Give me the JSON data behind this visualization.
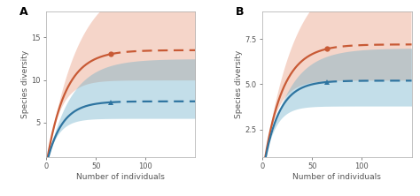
{
  "panel_A": {
    "label": "A",
    "xlim": [
      0,
      150
    ],
    "ylim": [
      1,
      18
    ],
    "yticks": [
      5,
      10,
      15
    ],
    "xlabel": "Number of individuals",
    "ylabel": "Species diversity",
    "red_obs_x": 65,
    "blue_obs_x": 65,
    "red_curve_params": {
      "a": 13.5,
      "b": 0.052
    },
    "blue_curve_params": {
      "a": 7.5,
      "b": 0.065
    },
    "red_ci_upper_params": {
      "a": 22.0,
      "b": 0.032
    },
    "red_ci_lower_params": {
      "a": 10.0,
      "b": 0.075
    },
    "blue_ci_upper_params": {
      "a": 12.5,
      "b": 0.042
    },
    "blue_ci_lower_params": {
      "a": 5.5,
      "b": 0.09
    }
  },
  "panel_B": {
    "label": "B",
    "xlim": [
      0,
      150
    ],
    "ylim": [
      1,
      9
    ],
    "yticks": [
      2.5,
      5.0,
      7.5
    ],
    "xlabel": "Number of individuals",
    "ylabel": "Species diversity",
    "red_obs_x": 65,
    "blue_obs_x": 65,
    "red_curve_params": {
      "a": 7.2,
      "b": 0.052
    },
    "blue_curve_params": {
      "a": 5.2,
      "b": 0.065
    },
    "red_ci_upper_params": {
      "a": 11.5,
      "b": 0.032
    },
    "red_ci_lower_params": {
      "a": 5.2,
      "b": 0.075
    },
    "blue_ci_upper_params": {
      "a": 7.0,
      "b": 0.042
    },
    "blue_ci_lower_params": {
      "a": 3.8,
      "b": 0.09
    }
  },
  "red_color": "#c85a35",
  "blue_color": "#2e74a0",
  "red_fill": "#e8967a",
  "blue_fill": "#6aaec8",
  "bg_color": "#ffffff",
  "fill_alpha": 0.4,
  "line_width": 1.6
}
